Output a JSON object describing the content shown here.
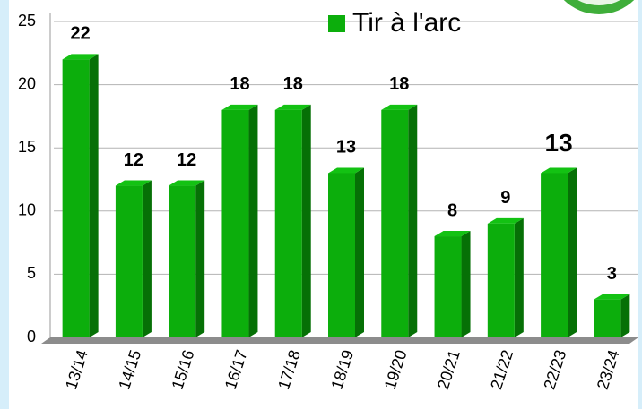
{
  "chart_data": {
    "type": "bar",
    "categories": [
      "13/14",
      "14/15",
      "15/16",
      "16/17",
      "17/18",
      "18/19",
      "19/20",
      "20/21",
      "21/22",
      "22/23",
      "23/24"
    ],
    "series": [
      {
        "name": "Tir à l'arc",
        "color": "#0cae0c",
        "values": [
          22,
          12,
          12,
          18,
          18,
          13,
          18,
          8,
          9,
          13,
          3
        ]
      }
    ],
    "ylim": [
      0,
      25
    ],
    "yticks": [
      0,
      5,
      10,
      15,
      20,
      25
    ],
    "grid": true,
    "legend": "top"
  }
}
